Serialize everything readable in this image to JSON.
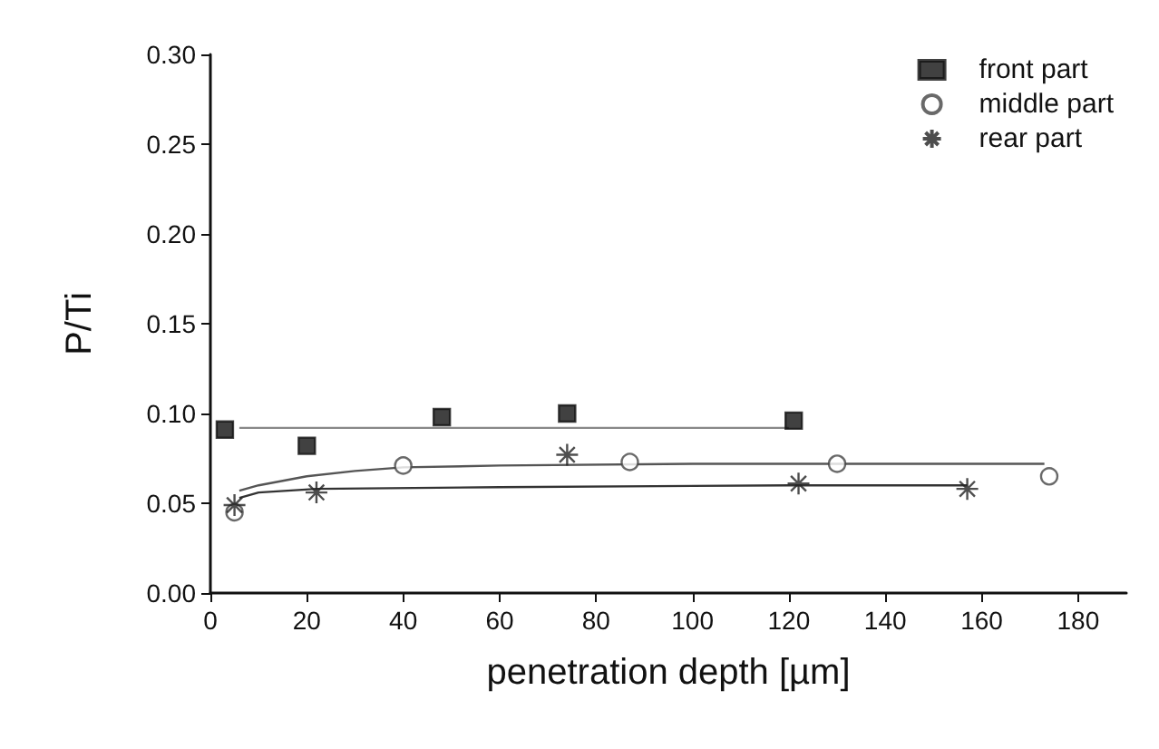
{
  "chart_data": {
    "type": "scatter",
    "xlabel": "penetration depth [µm]",
    "ylabel": "P/Ti",
    "xlim": [
      0,
      190
    ],
    "xticks": [
      0,
      20,
      40,
      60,
      80,
      100,
      120,
      140,
      160,
      180
    ],
    "ylim": [
      0,
      0.3
    ],
    "yticks": [
      {
        "value": 0,
        "label": "0.00"
      },
      {
        "value": 0.05,
        "label": "0.05"
      },
      {
        "value": 0.1,
        "label": "0.10"
      },
      {
        "value": 0.15,
        "label": "0.15"
      },
      {
        "value": 0.2,
        "label": "0.20"
      },
      {
        "value": 0.25,
        "label": "0.25"
      },
      {
        "value": 0.3,
        "label": "0.30"
      }
    ],
    "grid": false,
    "legend": "top right",
    "series": [
      {
        "name": "front part",
        "color": "#111111",
        "marker": "square",
        "x": [
          3,
          20,
          48,
          74,
          121
        ],
        "values": [
          0.091,
          0.082,
          0.098,
          0.1,
          0.096
        ]
      },
      {
        "name": "middle part",
        "color": "#444444",
        "marker": "circle",
        "x": [
          5,
          40,
          87,
          130,
          174
        ],
        "values": [
          0.045,
          0.071,
          0.073,
          0.072,
          0.065
        ]
      },
      {
        "name": "rear part",
        "color": "#222222",
        "marker": "cross",
        "x": [
          5,
          22,
          74,
          122,
          157
        ],
        "values": [
          0.049,
          0.056,
          0.077,
          0.061,
          0.058
        ]
      },
      {
        "type": "line",
        "color": "#888888",
        "marker": "none",
        "x": [
          6,
          120
        ],
        "values": [
          0.092,
          0.092
        ]
      },
      {
        "type": "line",
        "color": "#555555",
        "marker": "none",
        "x": [
          6,
          10,
          20,
          30,
          40,
          60,
          100,
          173
        ],
        "values": [
          0.057,
          0.06,
          0.065,
          0.068,
          0.07,
          0.071,
          0.072,
          0.072
        ]
      },
      {
        "type": "line",
        "color": "#333333",
        "marker": "none",
        "x": [
          6,
          10,
          22,
          60,
          120,
          157
        ],
        "values": [
          0.053,
          0.056,
          0.058,
          0.059,
          0.06,
          0.06
        ]
      }
    ]
  }
}
